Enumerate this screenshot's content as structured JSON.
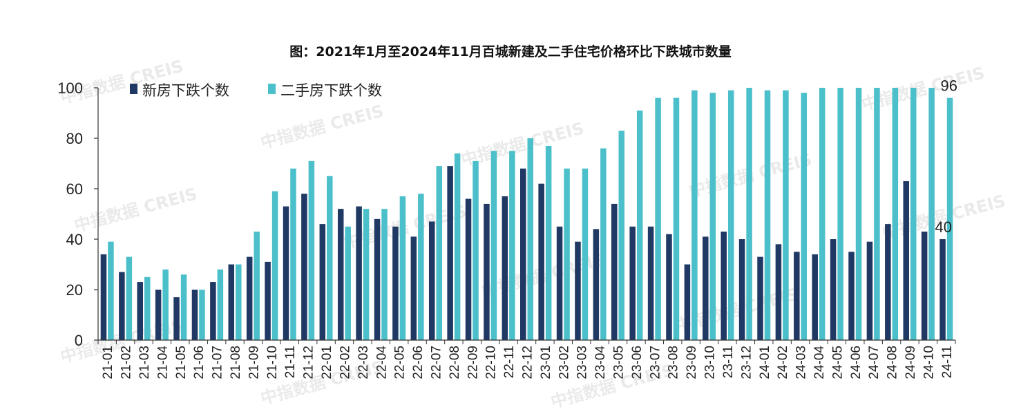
{
  "title": "图：2021年1月至2024年11月百城新建及二手住宅价格环比下跌城市数量",
  "watermark": "中指数据 CREIS",
  "chart_data": {
    "type": "bar",
    "title": "图：2021年1月至2024年11月百城新建及二手住宅价格环比下跌城市数量",
    "xlabel": "",
    "ylabel": "",
    "ylim": [
      0,
      100
    ],
    "yticks": [
      0,
      20,
      40,
      60,
      80,
      100
    ],
    "grid": false,
    "legend": "top-left",
    "categories": [
      "21-01",
      "21-02",
      "21-03",
      "21-04",
      "21-05",
      "21-06",
      "21-07",
      "21-08",
      "21-09",
      "21-10",
      "21-11",
      "21-12",
      "22-01",
      "22-02",
      "22-03",
      "22-04",
      "22-05",
      "22-06",
      "22-07",
      "22-08",
      "22-09",
      "22-10",
      "22-11",
      "22-12",
      "23-01",
      "23-02",
      "23-03",
      "23-04",
      "23-05",
      "23-06",
      "23-07",
      "23-08",
      "23-09",
      "23-10",
      "23-11",
      "23-12",
      "24-01",
      "24-02",
      "24-03",
      "24-04",
      "24-05",
      "24-06",
      "24-07",
      "24-08",
      "24-09",
      "24-10",
      "24-11"
    ],
    "series": [
      {
        "name": "新房下跌个数",
        "color": "#1f3864",
        "values": [
          34,
          27,
          23,
          20,
          17,
          20,
          23,
          30,
          33,
          31,
          53,
          58,
          46,
          52,
          53,
          48,
          45,
          41,
          47,
          69,
          56,
          54,
          57,
          68,
          62,
          45,
          39,
          44,
          54,
          45,
          45,
          42,
          30,
          41,
          43,
          40,
          33,
          38,
          35,
          34,
          40,
          35,
          39,
          46,
          63,
          43,
          40
        ]
      },
      {
        "name": "二手房下跌个数",
        "color": "#4bbfca",
        "values": [
          39,
          33,
          25,
          28,
          26,
          20,
          28,
          30,
          43,
          59,
          68,
          71,
          65,
          45,
          52,
          52,
          57,
          58,
          69,
          74,
          71,
          75,
          75,
          80,
          77,
          68,
          68,
          76,
          83,
          91,
          96,
          96,
          99,
          98,
          99,
          100,
          99,
          99,
          98,
          100,
          100,
          100,
          100,
          100,
          100,
          100,
          96
        ]
      }
    ],
    "data_labels": [
      {
        "series": "二手房下跌个数",
        "category": "24-11",
        "text": "96"
      },
      {
        "series": "新房下跌个数",
        "category": "24-11",
        "text": "40"
      }
    ]
  }
}
